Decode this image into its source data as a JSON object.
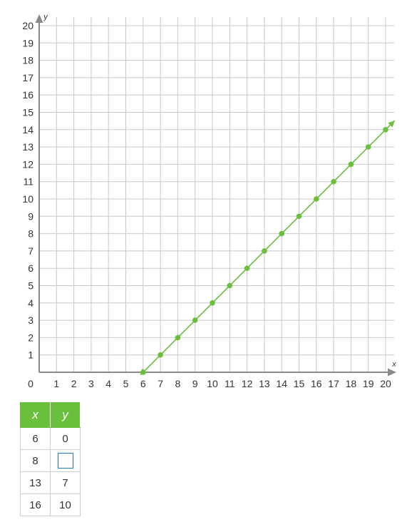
{
  "chart_data": {
    "type": "line",
    "xlabel": "x",
    "ylabel": "y",
    "xlim": [
      0,
      20
    ],
    "ylim": [
      0,
      20
    ],
    "x_ticks": [
      1,
      2,
      3,
      4,
      5,
      6,
      7,
      8,
      9,
      10,
      11,
      12,
      13,
      14,
      15,
      16,
      17,
      18,
      19,
      20
    ],
    "y_ticks": [
      1,
      2,
      3,
      4,
      5,
      6,
      7,
      8,
      9,
      10,
      11,
      12,
      13,
      14,
      15,
      16,
      17,
      18,
      19,
      20
    ],
    "origin_label": "0",
    "grid": true,
    "line_color": "#6abf3c",
    "grid_color": "#c8c8c8",
    "axis_color": "#8a8a8a",
    "series": [
      {
        "x": [
          6,
          7,
          8,
          9,
          10,
          11,
          12,
          13,
          14,
          15,
          16,
          17,
          18,
          19,
          20
        ],
        "y": [
          0,
          1,
          2,
          3,
          4,
          5,
          6,
          7,
          8,
          9,
          10,
          11,
          12,
          13,
          14
        ],
        "arrow_ends": true
      }
    ]
  },
  "table": {
    "headers": [
      "x",
      "y"
    ],
    "rows": [
      {
        "x": "6",
        "y": "0"
      },
      {
        "x": "8",
        "y": ""
      },
      {
        "x": "13",
        "y": "7"
      },
      {
        "x": "16",
        "y": "10"
      }
    ]
  }
}
